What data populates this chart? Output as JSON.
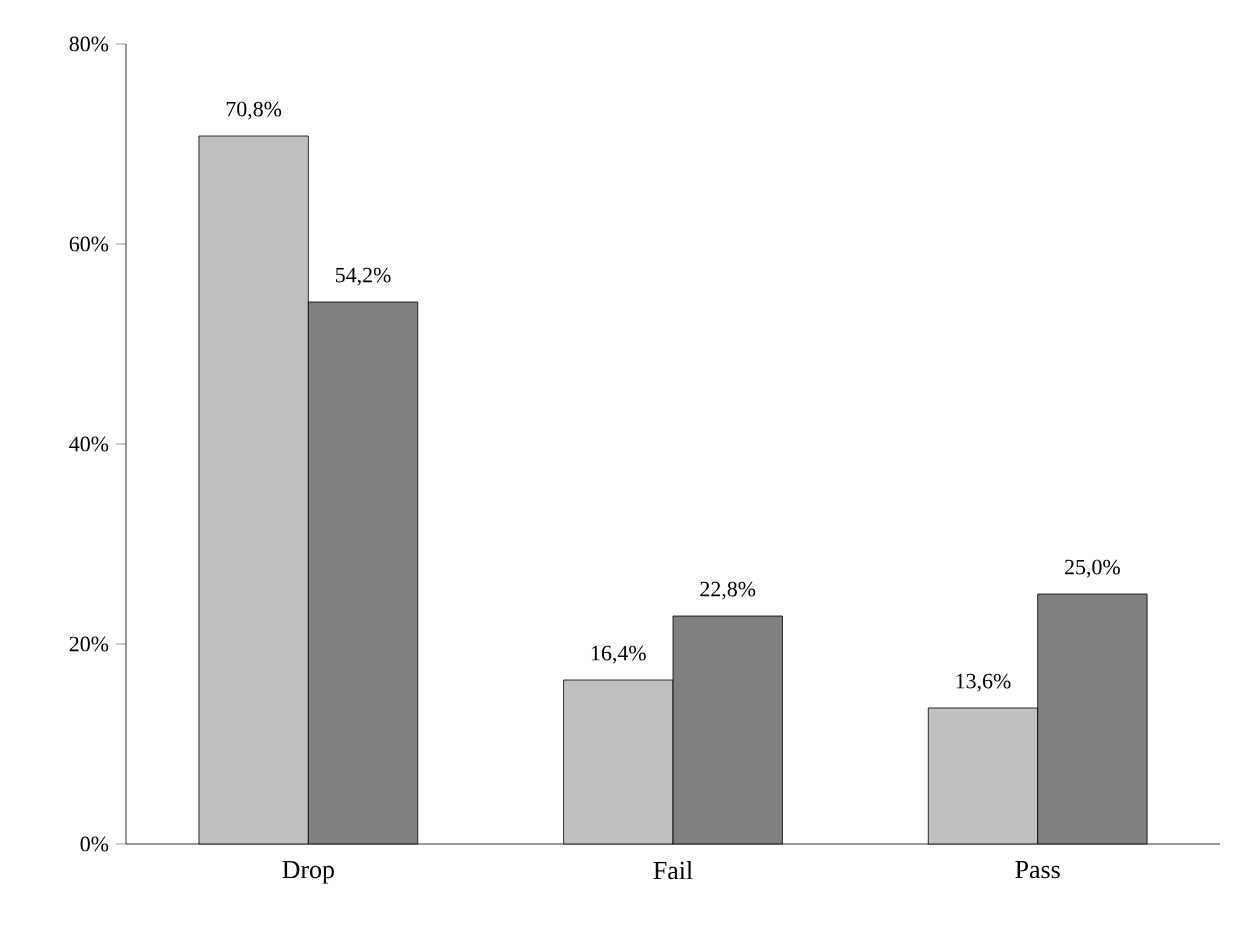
{
  "chart_data": {
    "type": "bar",
    "categories": [
      "Drop",
      "Fail",
      "Pass"
    ],
    "series": [
      {
        "color": "#c0c0c0",
        "values": [
          70.8,
          16.4,
          13.6
        ],
        "value_labels": [
          "70,8%",
          "16,4%",
          "13,6%"
        ]
      },
      {
        "color": "#808080",
        "values": [
          54.2,
          22.8,
          25.0
        ],
        "value_labels": [
          "54,2%",
          "22,8%",
          "25,0%"
        ]
      }
    ],
    "ylim": [
      0,
      80
    ],
    "yticks": [
      {
        "value": 0,
        "label": "0%"
      },
      {
        "value": 20,
        "label": "20%"
      },
      {
        "value": 40,
        "label": "40%"
      },
      {
        "value": 60,
        "label": "60%"
      },
      {
        "value": 80,
        "label": "80%"
      }
    ]
  }
}
